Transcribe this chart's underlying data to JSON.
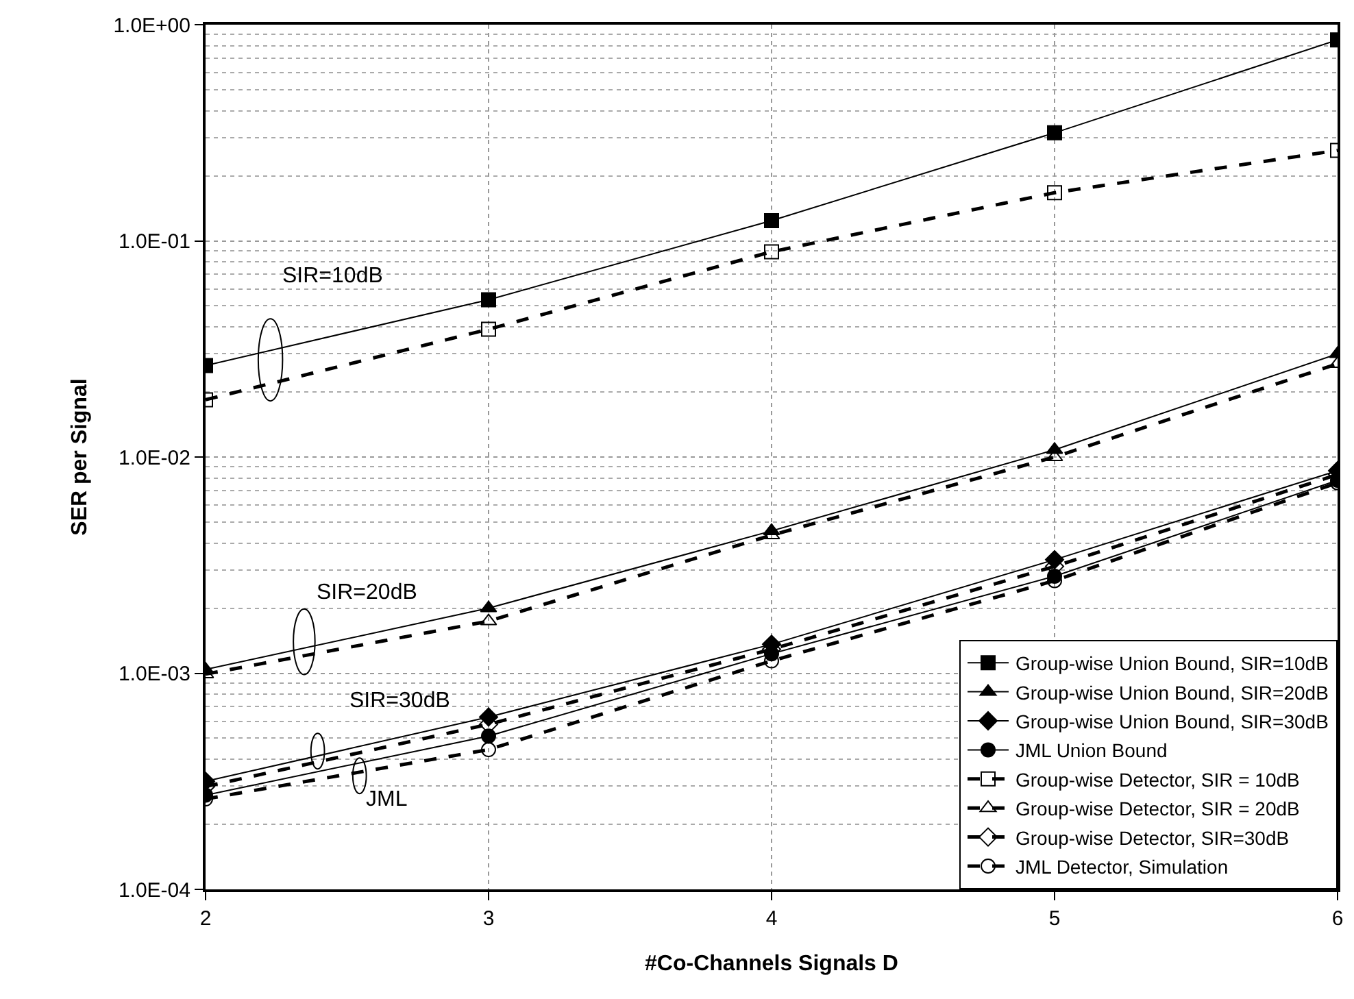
{
  "chart_data": {
    "type": "line",
    "xlabel": "#Co-Channels Signals D",
    "ylabel": "SER per Signal",
    "x": [
      2,
      3,
      4,
      5,
      6
    ],
    "xlim": [
      2,
      6
    ],
    "xticks": [
      2,
      3,
      4,
      5,
      6
    ],
    "log": "y",
    "ylim": [
      0.0001,
      1
    ],
    "yticks": [
      {
        "value": 0.0001,
        "label": "1.0E-04"
      },
      {
        "value": 0.001,
        "label": "1.0E-03"
      },
      {
        "value": 0.01,
        "label": "1.0E-02"
      },
      {
        "value": 0.1,
        "label": "1.0E-01"
      },
      {
        "value": 1,
        "label": "1.0E+00"
      }
    ],
    "grid": true,
    "legend": "bottom right",
    "series": [
      {
        "name": "Group-wise Union Bound, SIR=10dB",
        "color": "#000000",
        "marker": "square",
        "line_style": "solid",
        "values": [
          0.0265,
          0.0534,
          0.124,
          0.316,
          0.85
        ]
      },
      {
        "name": "Group-wise Union Bound, SIR=20dB",
        "color": "#000000",
        "marker": "triangle",
        "line_style": "solid",
        "values": [
          0.00104,
          0.002,
          0.00455,
          0.0108,
          0.03
        ]
      },
      {
        "name": "Group-wise Union Bound, SIR=30dB",
        "color": "#000000",
        "marker": "diamond",
        "line_style": "solid",
        "values": [
          0.000316,
          0.000627,
          0.00136,
          0.00335,
          0.00865
        ]
      },
      {
        "name": "JML Union Bound",
        "color": "#000000",
        "marker": "circle",
        "line_style": "solid",
        "values": [
          0.000273,
          0.000512,
          0.00123,
          0.00281,
          0.0078
        ]
      },
      {
        "name": "Group-wise Detector, SIR = 10dB",
        "color": "#000000",
        "marker": "square",
        "line_style": "dashed",
        "values": [
          0.0184,
          0.039,
          0.089,
          0.167,
          0.262
        ]
      },
      {
        "name": "Group-wise Detector, SIR = 20dB",
        "color": "#000000",
        "marker": "triangle",
        "line_style": "dashed",
        "values": [
          0.00099,
          0.00174,
          0.00435,
          0.01,
          0.027
        ]
      },
      {
        "name": "Group-wise Detector, SIR=30dB",
        "color": "#000000",
        "marker": "diamond",
        "line_style": "dashed",
        "values": [
          0.000299,
          0.00058,
          0.00129,
          0.00312,
          0.0083
        ]
      },
      {
        "name": "JML Detector, Simulation",
        "color": "#000000",
        "marker": "circle",
        "line_style": "dashed",
        "values": [
          0.000262,
          0.000443,
          0.00114,
          0.00268,
          0.0076
        ]
      }
    ],
    "annotations": [
      "SIR=10dB",
      "SIR=20dB",
      "SIR=30dB",
      "JML"
    ]
  }
}
